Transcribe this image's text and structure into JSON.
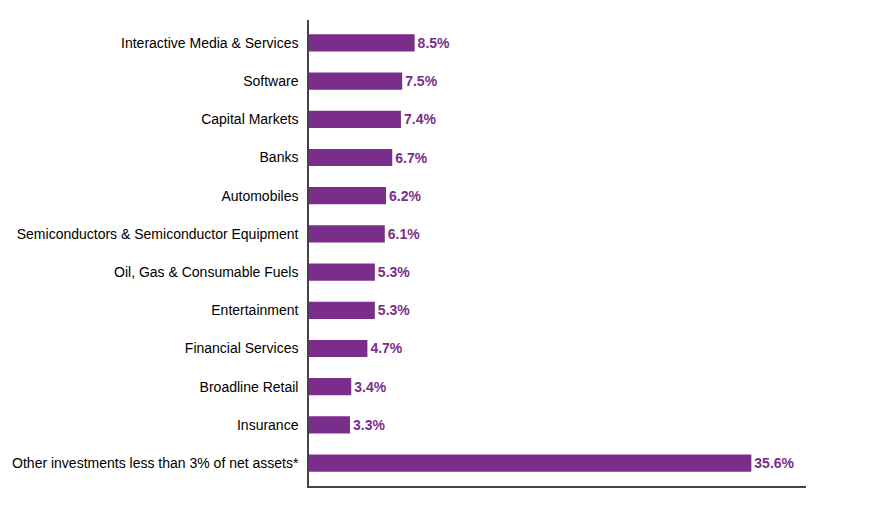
{
  "chart_data": {
    "type": "bar",
    "orientation": "horizontal",
    "categories": [
      "Other investments less than 3% of net assets*",
      "Insurance",
      "Broadline Retail",
      "Financial Services",
      "Entertainment",
      "Oil, Gas & Consumable Fuels",
      "Semiconductors & Semiconductor Equipment",
      "Automobiles",
      "Banks",
      "Capital Markets",
      "Software",
      "Interactive Media & Services"
    ],
    "values": [
      35.6,
      3.3,
      3.4,
      4.7,
      5.3,
      5.3,
      6.1,
      6.2,
      6.7,
      7.4,
      7.5,
      8.5
    ],
    "value_labels": [
      "35.6%",
      "3.3%",
      "3.4%",
      "4.7%",
      "5.3%",
      "5.3%",
      "6.1%",
      "6.2%",
      "6.7%",
      "7.4%",
      "7.5%",
      "8.5%"
    ],
    "color": "#7B2D8B",
    "xlim": [
      0,
      40
    ],
    "data_labels": true,
    "tick_labels": "y",
    "grid": false
  }
}
